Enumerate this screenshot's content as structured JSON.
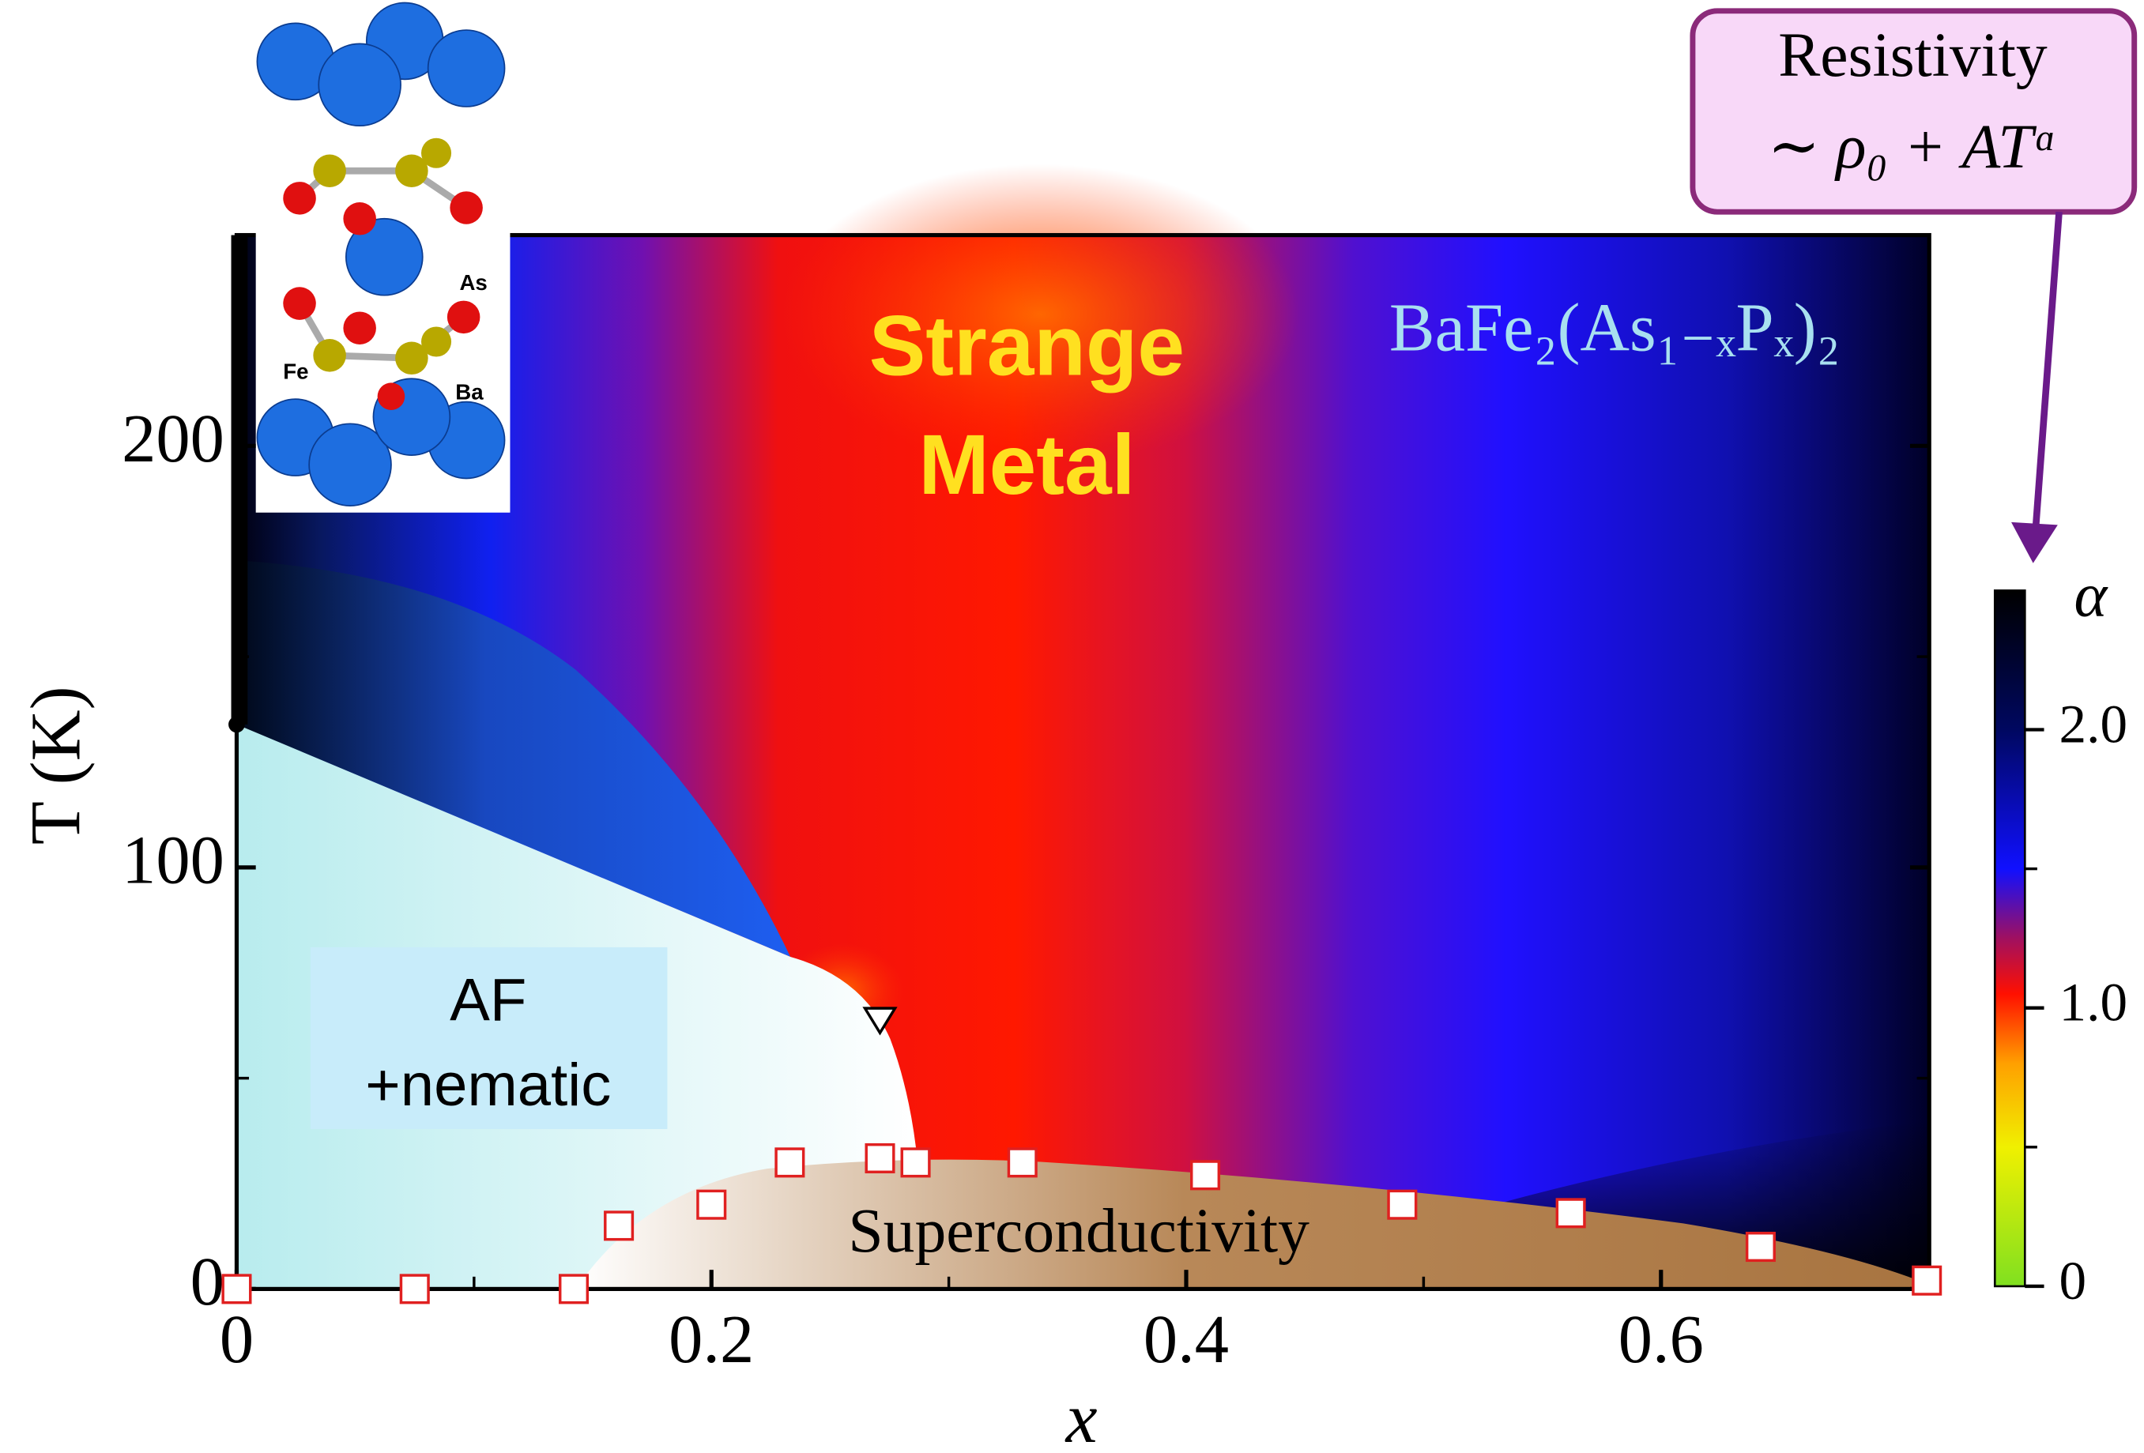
{
  "chart_data": {
    "type": "scatter",
    "x_label": "x",
    "y_label": "T (K)",
    "x": [
      0,
      0.075,
      0.142,
      0.161,
      0.2,
      0.233,
      0.271,
      0.286,
      0.331,
      0.408,
      0.491,
      0.562,
      0.642,
      0.712
    ],
    "values": [
      0,
      0,
      0,
      15,
      20,
      30,
      31,
      30,
      30,
      27,
      20,
      18,
      10,
      2
    ],
    "color": "#e02020",
    "marker": "square",
    "triangle_point": [
      0.271,
      64
    ],
    "xlim": [
      0,
      0.713
    ],
    "ylim": [
      0,
      250
    ],
    "xticks": [
      0,
      0.2,
      0.4,
      0.6
    ],
    "xminor": [
      0.1,
      0.3,
      0.5
    ],
    "yticks": [
      0,
      100,
      200
    ],
    "yminor": [
      50,
      150
    ],
    "colorbar": {
      "label": "α",
      "lim": [
        0,
        2.5
      ],
      "ticks": [
        0,
        {
          "value": 1.0,
          "label": "1.0"
        },
        {
          "value": 2.0,
          "label": "2.0"
        }
      ],
      "minor": [
        0.5,
        1.5
      ]
    },
    "annotations": {
      "strange": [
        "Strange",
        "Metal"
      ],
      "af": [
        "AF",
        "+nematic"
      ],
      "sc": "Superconductivity",
      "formula": "BaFe₂(As₁₋ₓPₓ)₂",
      "callout": [
        "Resistivity",
        "∼ ρ₀ + ATᵅ"
      ]
    },
    "inset_labels": [
      "As",
      "Fe",
      "Ba"
    ]
  }
}
